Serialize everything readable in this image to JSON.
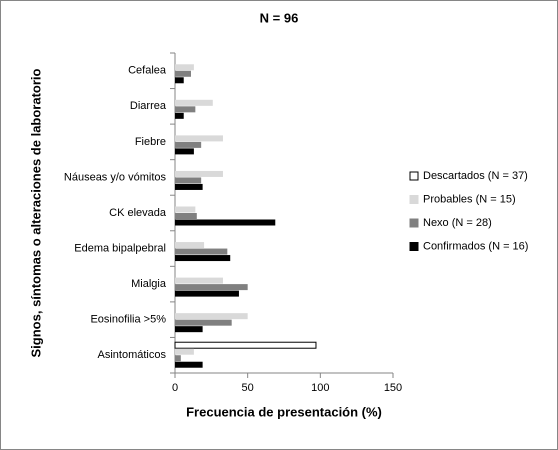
{
  "chart_data": {
    "type": "hbar",
    "title": "N = 96",
    "xlabel": "Frecuencia de presentación (%)",
    "ylabel": "Signos, síntomas o alteraciones de laboratorio",
    "categories": [
      "Cefalea",
      "Diarrea",
      "Fiebre",
      "Náuseas y/o vómitos",
      "CK elevada",
      "Edema bipalpebral",
      "Mialgia",
      "Eosinofilia >5%",
      "Asintomáticos"
    ],
    "series": [
      {
        "name": "Descartados (N = 37)",
        "color": "#ffffff",
        "edgecolor": "#000000",
        "values": [
          0,
          0,
          0,
          0,
          0,
          0,
          0,
          0,
          97
        ]
      },
      {
        "name": "Probables (N = 15)",
        "color": "#d9d9d9",
        "values": [
          13,
          26,
          33,
          33,
          14,
          20,
          33,
          50,
          13
        ]
      },
      {
        "name": "Nexo (N = 28)",
        "color": "#808080",
        "values": [
          11,
          14,
          18,
          18,
          15,
          36,
          50,
          39,
          4
        ]
      },
      {
        "name": "Confirmados (N = 16)",
        "color": "#000000",
        "values": [
          6,
          6,
          13,
          19,
          69,
          38,
          44,
          19,
          19
        ]
      }
    ],
    "xlim": [
      0,
      150
    ],
    "xticks": [
      0,
      50,
      100,
      150
    ],
    "grid": false,
    "legend": "right"
  }
}
